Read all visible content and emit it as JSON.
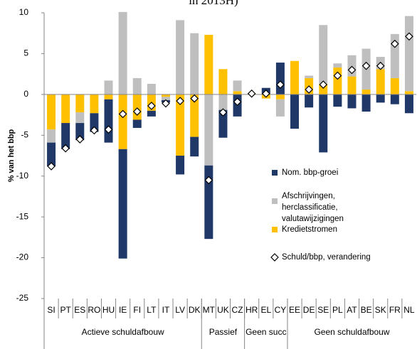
{
  "chart_data": {
    "type": "bar",
    "title": "in 2013H)",
    "y_label": "% van het bbp",
    "categories": [
      "SI",
      "PT",
      "ES",
      "RO",
      "HU",
      "IE",
      "FI",
      "LT",
      "IT",
      "LV",
      "DK",
      "MT",
      "UK",
      "CZ",
      "HR",
      "EL",
      "CY",
      "EE",
      "DE",
      "SE",
      "PL",
      "AT",
      "BE",
      "SK",
      "FR",
      "NL"
    ],
    "groups": [
      {
        "name": "Actieve schuldafbouw",
        "span": 11
      },
      {
        "name": "Passief",
        "span": 3
      },
      {
        "name": "Geen succ",
        "span": 3
      },
      {
        "name": "Geen schuldafbouw",
        "span": 9
      }
    ],
    "series": [
      {
        "name": "Nom. bbp-groei",
        "color": "#1f3868",
        "values": [
          -2.9,
          -3.2,
          -2.1,
          -2.3,
          -5.3,
          -13.4,
          -1.0,
          -0.7,
          -0.3,
          -2.3,
          -2.4,
          -9.0,
          -3.4,
          -2.7,
          0,
          0.8,
          3.9,
          -4.2,
          -1.6,
          -7.1,
          -1.5,
          -1.7,
          -2.1,
          -1.0,
          -1.2,
          -2.3
        ]
      },
      {
        "name": "Afschrijvingen, herclassificatie, valutawijzigingen",
        "color": "#bfbfbf",
        "values": [
          -1.6,
          0,
          -1.3,
          0,
          1.7,
          10.1,
          2.0,
          1.3,
          -0.4,
          9.1,
          7.5,
          -8.7,
          -1.9,
          1.3,
          0,
          0,
          -2.1,
          0,
          0.3,
          7.2,
          0.5,
          2.6,
          5.0,
          1.5,
          5.4,
          9.2
        ]
      },
      {
        "name": "Kredietstromen",
        "color": "#ffc000",
        "values": [
          -4.3,
          -3.5,
          -2.2,
          -2.3,
          -0.6,
          -6.7,
          -3.1,
          -2.0,
          -0.3,
          -7.5,
          -5.2,
          7.3,
          3.1,
          0.4,
          0.1,
          -0.5,
          -0.6,
          4.1,
          2.0,
          1.3,
          3.3,
          2.2,
          0.6,
          3.1,
          2.0,
          0.4
        ]
      },
      {
        "name": "Schuld/bbp, verandering",
        "color": "#ffffff",
        "marker": "diamond",
        "values": [
          -8.8,
          -6.6,
          -5.5,
          -4.4,
          -4.3,
          -2.4,
          -2.1,
          -1.4,
          -1.1,
          -0.8,
          -0.5,
          -10.5,
          -2.2,
          -0.9,
          0.1,
          0.1,
          1.2,
          null,
          0.6,
          1.2,
          2.3,
          3.0,
          3.5,
          3.5,
          6.2,
          7.1
        ]
      }
    ],
    "stack_order": [
      2,
      1,
      0
    ],
    "ylim": [
      -25,
      10
    ],
    "yticks": [
      -25,
      -20,
      -15,
      -10,
      -5,
      0,
      5,
      10
    ],
    "grid": false
  }
}
